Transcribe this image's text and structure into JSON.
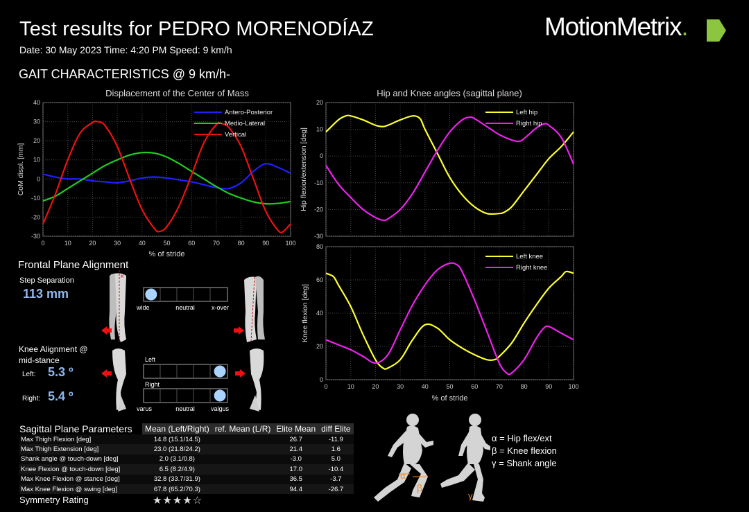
{
  "header": {
    "title": "Test results for PEDRO MORENODÍAZ",
    "date_line": "Date: 30 May 2023  Time:  4:20 PM  Speed: 9 km/h",
    "logo_text": "MotionMetrix",
    "logo_dot": ".",
    "logo_color": "#ffffff",
    "logo_accent": "#8cc63f"
  },
  "section_title": "GAIT CHARACTERISTICS @ 9  km/h-",
  "chart_data": [
    {
      "type": "line",
      "title": "Displacement of the Center of Mass",
      "xlabel": "% of stride",
      "ylabel": "CoM displ. [mm]",
      "xlim": [
        0,
        100
      ],
      "ylim": [
        -30,
        40
      ],
      "xticks": [
        "0",
        "10",
        "20",
        "30",
        "40",
        "50",
        "60",
        "70",
        "80",
        "90",
        "100"
      ],
      "yticks": [
        "40",
        "30",
        "20",
        "10",
        "0",
        "-10",
        "-20",
        "-30"
      ],
      "grid": true,
      "legend_position": "top-right",
      "series": [
        {
          "name": "Antero-Posterior",
          "color": "#2020ff",
          "x": [
            0,
            5,
            10,
            15,
            20,
            25,
            30,
            35,
            40,
            45,
            50,
            55,
            60,
            65,
            70,
            75,
            80,
            85,
            90,
            95,
            100
          ],
          "y": [
            2.5,
            1,
            0,
            0,
            -1,
            -1.5,
            -2,
            -1,
            0.5,
            1,
            0.5,
            -0.5,
            -1.5,
            -3,
            -4.5,
            -5,
            -2,
            4,
            8,
            6,
            3
          ]
        },
        {
          "name": "Medio-Lateral",
          "color": "#22cc22",
          "x": [
            0,
            5,
            10,
            15,
            20,
            25,
            30,
            35,
            40,
            45,
            50,
            55,
            60,
            65,
            70,
            75,
            80,
            85,
            90,
            95,
            100
          ],
          "y": [
            -11.5,
            -9,
            -5,
            -1,
            3,
            7,
            10,
            12.5,
            13.8,
            13.5,
            11.5,
            8,
            4,
            0,
            -4,
            -7.5,
            -10,
            -12,
            -13,
            -12.8,
            -11.8
          ]
        },
        {
          "name": "Vertical",
          "color": "#ee1111",
          "x": [
            0,
            5,
            10,
            15,
            20,
            22,
            25,
            30,
            35,
            40,
            45,
            47,
            50,
            55,
            60,
            65,
            70,
            72,
            75,
            80,
            85,
            90,
            95,
            97,
            100
          ],
          "y": [
            -23.5,
            -8,
            10,
            24,
            29.5,
            30,
            28,
            17,
            0,
            -16,
            -26,
            -27.5,
            -25,
            -14,
            2,
            19,
            28.5,
            29,
            27,
            17,
            0,
            -17,
            -27,
            -27.5,
            -23.5
          ]
        }
      ]
    },
    {
      "type": "line",
      "title": "Hip and Knee angles (sagittal plane)",
      "xlabel": "",
      "ylabel": "Hip flexior/extension [deg]",
      "xlim": [
        0,
        100
      ],
      "ylim": [
        -30,
        20
      ],
      "xticks": [],
      "yticks": [
        "20",
        "10",
        "0",
        "-10",
        "-20",
        "-30"
      ],
      "grid": true,
      "legend_position": "top-right",
      "series": [
        {
          "name": "Left hip",
          "color": "#ffff33",
          "x": [
            0,
            5,
            8,
            10,
            15,
            20,
            23,
            25,
            30,
            35,
            38,
            40,
            45,
            50,
            55,
            60,
            65,
            70,
            72,
            75,
            80,
            85,
            90,
            95,
            100
          ],
          "y": [
            9,
            13.5,
            15,
            15,
            13.5,
            11.5,
            11,
            11.5,
            13.5,
            15,
            14,
            10,
            1,
            -8,
            -14.5,
            -19,
            -21.5,
            -21.5,
            -21,
            -19,
            -13,
            -7,
            -1,
            3.5,
            9
          ]
        },
        {
          "name": "Right hip",
          "color": "#ee22ee",
          "x": [
            0,
            5,
            10,
            15,
            20,
            23,
            25,
            30,
            35,
            40,
            45,
            50,
            55,
            58,
            60,
            65,
            70,
            75,
            78,
            80,
            85,
            88,
            90,
            95,
            100
          ],
          "y": [
            -3.5,
            -10.5,
            -15.5,
            -20,
            -23,
            -24,
            -23.5,
            -20,
            -14,
            -6,
            2,
            9,
            13.5,
            14.5,
            14,
            11,
            8,
            6,
            5.5,
            6.5,
            10.5,
            12,
            11.5,
            7,
            -3
          ]
        }
      ]
    },
    {
      "type": "line",
      "title": "",
      "xlabel": "% of stride",
      "ylabel": "Knee flexion [deg]",
      "xlim": [
        0,
        100
      ],
      "ylim": [
        0,
        80
      ],
      "xticks": [
        "0",
        "10",
        "20",
        "30",
        "40",
        "50",
        "60",
        "70",
        "80",
        "90",
        "100"
      ],
      "yticks": [
        "80",
        "60",
        "40",
        "20",
        "0"
      ],
      "grid": true,
      "legend_position": "top-right",
      "series": [
        {
          "name": "Left knee",
          "color": "#ffff33",
          "x": [
            0,
            3,
            5,
            10,
            15,
            20,
            23,
            25,
            30,
            35,
            40,
            45,
            50,
            55,
            60,
            65,
            68,
            70,
            75,
            80,
            85,
            90,
            95,
            97,
            100
          ],
          "y": [
            64,
            62,
            57,
            44,
            27,
            12,
            7,
            7,
            12,
            24,
            33,
            31,
            24,
            19,
            15,
            12,
            12,
            14,
            22,
            34,
            45,
            55,
            62,
            65,
            64
          ]
        },
        {
          "name": "Right knee",
          "color": "#ee22ee",
          "x": [
            0,
            5,
            10,
            15,
            20,
            25,
            30,
            35,
            40,
            45,
            50,
            53,
            55,
            60,
            65,
            70,
            73,
            75,
            80,
            85,
            88,
            90,
            95,
            100
          ],
          "y": [
            24,
            21,
            18,
            14,
            10,
            15,
            30,
            45,
            57,
            66,
            70,
            69,
            65,
            48,
            29,
            10,
            4,
            4,
            12,
            25,
            31,
            32,
            28,
            24
          ]
        }
      ]
    }
  ],
  "frontal": {
    "title": "Frontal Plane Alignment",
    "step_sep_label": "Step Separation",
    "step_sep_value": "113 mm",
    "step_scale": [
      "wide",
      "neutral",
      "x-over"
    ],
    "step_marker_fraction": 0.09,
    "knee_title_1": "Knee Alignment @",
    "knee_title_2": "mid-stance",
    "left_label": "Left:",
    "left_value": "5.3 º",
    "right_label": "Right:",
    "right_value": "5.4 º",
    "knee_left_bar_label": "Left",
    "knee_right_bar_label": "Right",
    "knee_scale": [
      "varus",
      "neutral",
      "valgus"
    ],
    "knee_left_marker_fraction": 0.91,
    "knee_right_marker_fraction": 0.91,
    "marker_color": "#a8d4ff",
    "arrow_color": "#ee1111"
  },
  "sagittal": {
    "title": "Sagittal Plane Parameters",
    "columns": [
      "Mean (Left/Right)",
      "ref. Mean (L/R)",
      "Elite Mean",
      "diff Elite"
    ],
    "rows": [
      {
        "label": "Max Thigh Flexion [deg]",
        "mean": "14.8 (15.1/14.5)",
        "ref": "",
        "elite": "26.7",
        "diff": "-11.9"
      },
      {
        "label": "Max Thigh Extension [deg]",
        "mean": "23.0 (21.8/24.2)",
        "ref": "",
        "elite": "21.4",
        "diff": "1.6"
      },
      {
        "label": "Shank angle @ touch-down [deg]",
        "mean": "2.0 (3.1/0.8)",
        "ref": "",
        "elite": "-3.0",
        "diff": "5.0"
      },
      {
        "label": "Knee Flexion @ touch-down [deg]",
        "mean": "6.5 (8.2/4.9)",
        "ref": "",
        "elite": "17.0",
        "diff": "-10.4"
      },
      {
        "label": "Max Knee Flexion @ stance [deg]",
        "mean": "32.8 (33.7/31.9)",
        "ref": "",
        "elite": "36.5",
        "diff": "-3.7"
      },
      {
        "label": "Max Knee Flexion @ swing [deg]",
        "mean": "67.8 (65.2/70.3)",
        "ref": "",
        "elite": "94.4",
        "diff": "-26.7"
      }
    ],
    "symmetry_label": "Symmetry Rating",
    "symmetry_stars": "★★★★☆",
    "symmetry_rating": 4
  },
  "greek_legend": {
    "alpha": "α = Hip flex/ext",
    "beta": "β = Knee flexion",
    "gamma": "γ = Shank angle",
    "fig_alpha": "α",
    "fig_beta": "β",
    "fig_gamma": "γ",
    "accent": "#f08a2a"
  }
}
